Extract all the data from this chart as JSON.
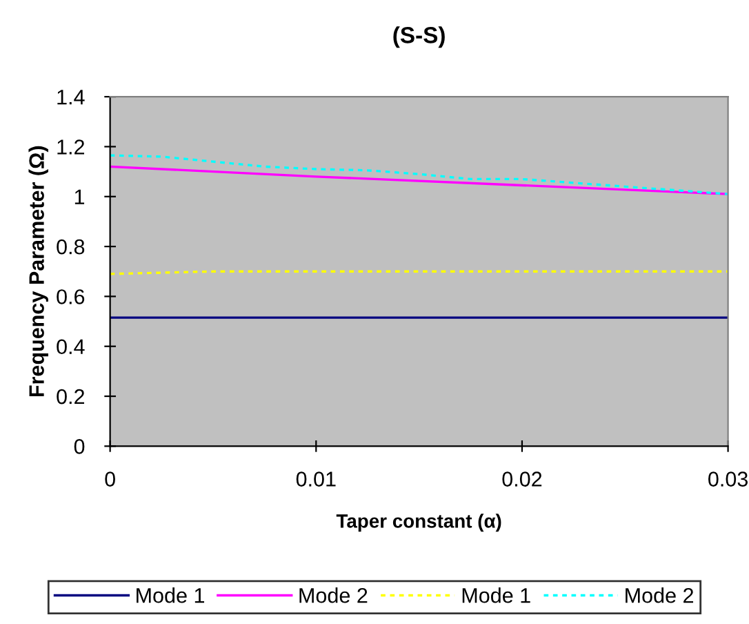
{
  "chart_data": {
    "type": "line",
    "title": "(S-S)",
    "xlabel": "Taper constant (α)",
    "ylabel": "Frequency Parameter (Ω)",
    "xlim": [
      0,
      0.03
    ],
    "xticks": [
      0,
      0.01,
      0.02,
      0.03
    ],
    "ylim": [
      0,
      1.4
    ],
    "yticks": [
      0,
      0.2,
      0.4,
      0.6,
      0.8,
      1,
      1.2,
      1.4
    ],
    "grid": false,
    "legend": "bottom",
    "marker": "none",
    "series": [
      {
        "name": "Mode 1",
        "color": "#000080",
        "line_style": "solid",
        "x": [
          0,
          0.01,
          0.02,
          0.03
        ],
        "values": [
          0.515,
          0.515,
          0.515,
          0.515
        ]
      },
      {
        "name": "Mode 2",
        "color": "#ff00ff",
        "line_style": "solid",
        "x": [
          0,
          0.01,
          0.02,
          0.03
        ],
        "values": [
          1.12,
          1.08,
          1.045,
          1.01
        ]
      },
      {
        "name": "Mode 1",
        "color": "#ffff00",
        "line_style": "dotted",
        "x": [
          0,
          0.005,
          0.01,
          0.02,
          0.03
        ],
        "values": [
          0.69,
          0.7,
          0.7,
          0.7,
          0.7
        ]
      },
      {
        "name": "Mode 2",
        "color": "#00ffff",
        "line_style": "dotted",
        "x": [
          0,
          0.0025,
          0.005,
          0.0075,
          0.01,
          0.0125,
          0.015,
          0.0175,
          0.02,
          0.025,
          0.03
        ],
        "values": [
          1.165,
          1.16,
          1.14,
          1.12,
          1.11,
          1.105,
          1.09,
          1.07,
          1.07,
          1.04,
          1.01
        ]
      }
    ]
  }
}
